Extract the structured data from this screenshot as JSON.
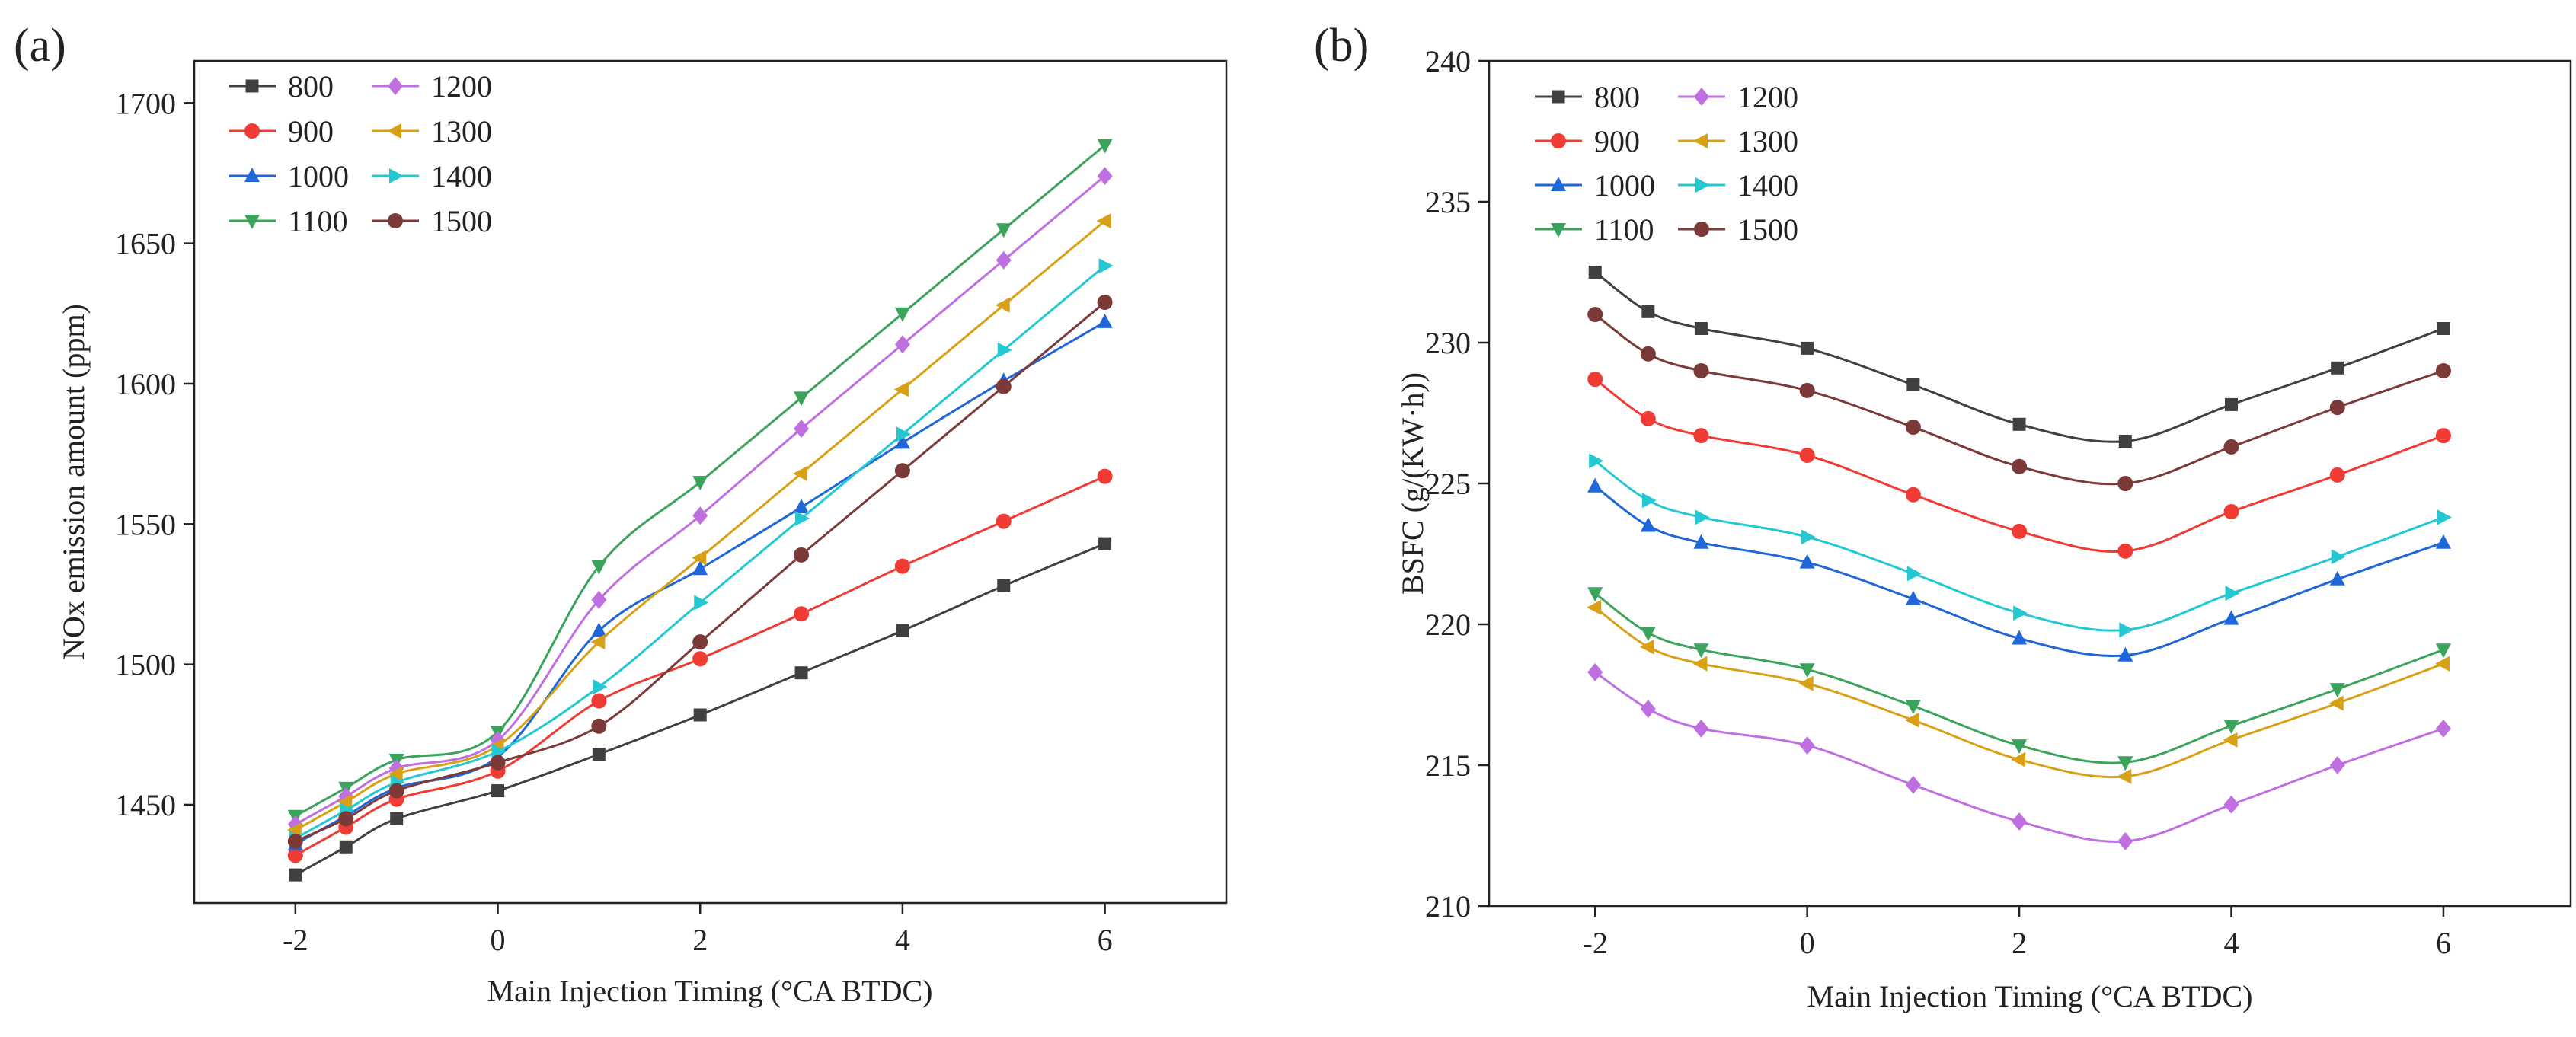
{
  "chart_data": [
    {
      "panel_label": "(a)",
      "type": "line",
      "xlabel": "Main Injection Timing (°CA BTDC)",
      "ylabel": "NOx emission amount (ppm)",
      "xlim": [
        -3,
        7.2
      ],
      "ylim": [
        1415,
        1715
      ],
      "xticks": [
        -2,
        0,
        2,
        4,
        6
      ],
      "yticks": [
        1450,
        1500,
        1550,
        1600,
        1650,
        1700
      ],
      "x": [
        -2,
        -1.5,
        -1,
        0,
        1,
        2,
        3,
        4,
        5,
        6
      ],
      "legend_position": "top-left",
      "series": [
        {
          "name": "800",
          "color": "#404040",
          "marker": "square",
          "values": [
            1425,
            1435,
            1445,
            1455,
            1468,
            1482,
            1497,
            1512,
            1528,
            1543
          ]
        },
        {
          "name": "900",
          "color": "#ef3b33",
          "marker": "circle",
          "values": [
            1432,
            1442,
            1452,
            1462,
            1487,
            1502,
            1518,
            1535,
            1551,
            1567
          ]
        },
        {
          "name": "1000",
          "color": "#1f66d9",
          "marker": "triangle-up",
          "values": [
            1436,
            1446,
            1456,
            1467,
            1512,
            1534,
            1556,
            1579,
            1601,
            1622
          ]
        },
        {
          "name": "1100",
          "color": "#3aa35c",
          "marker": "triangle-down",
          "values": [
            1446,
            1456,
            1466,
            1476,
            1535,
            1565,
            1595,
            1625,
            1655,
            1685
          ]
        },
        {
          "name": "1200",
          "color": "#bf6fe0",
          "marker": "diamond",
          "values": [
            1443,
            1453,
            1463,
            1473,
            1523,
            1553,
            1584,
            1614,
            1644,
            1674
          ]
        },
        {
          "name": "1300",
          "color": "#d8a015",
          "marker": "triangle-left",
          "values": [
            1441,
            1451,
            1461,
            1471,
            1508,
            1538,
            1568,
            1598,
            1628,
            1658
          ]
        },
        {
          "name": "1400",
          "color": "#25c8d2",
          "marker": "triangle-right",
          "values": [
            1438,
            1448,
            1458,
            1469,
            1492,
            1522,
            1552,
            1582,
            1612,
            1642
          ]
        },
        {
          "name": "1500",
          "color": "#7b3a38",
          "marker": "circle",
          "values": [
            1437,
            1445,
            1455,
            1465,
            1478,
            1508,
            1539,
            1569,
            1599,
            1629
          ]
        }
      ]
    },
    {
      "panel_label": "(b)",
      "type": "line",
      "xlabel": "Main Injection Timing (°CA BTDC)",
      "ylabel": "BSFC (g/(KW·h))",
      "xlim": [
        -3,
        7.2
      ],
      "ylim": [
        210,
        240
      ],
      "xticks": [
        -2,
        0,
        2,
        4,
        6
      ],
      "yticks": [
        210,
        215,
        220,
        225,
        230,
        235,
        240
      ],
      "x": [
        -2,
        -1.5,
        -1,
        0,
        1,
        2,
        3,
        4,
        5,
        6
      ],
      "legend_position": "top-left",
      "series": [
        {
          "name": "800",
          "color": "#404040",
          "marker": "square",
          "values": [
            232.5,
            231.1,
            230.5,
            229.8,
            228.5,
            227.1,
            226.5,
            227.8,
            229.1,
            230.5
          ]
        },
        {
          "name": "900",
          "color": "#ef3b33",
          "marker": "circle",
          "values": [
            228.7,
            227.3,
            226.7,
            226.0,
            224.6,
            223.3,
            222.6,
            224.0,
            225.3,
            226.7
          ]
        },
        {
          "name": "1000",
          "color": "#1f66d9",
          "marker": "triangle-up",
          "values": [
            224.9,
            223.5,
            222.9,
            222.2,
            220.9,
            219.5,
            218.9,
            220.2,
            221.6,
            222.9
          ]
        },
        {
          "name": "1100",
          "color": "#3aa35c",
          "marker": "triangle-down",
          "values": [
            221.1,
            219.7,
            219.1,
            218.4,
            217.1,
            215.7,
            215.1,
            216.4,
            217.7,
            219.1
          ]
        },
        {
          "name": "1200",
          "color": "#bf6fe0",
          "marker": "diamond",
          "values": [
            218.3,
            217.0,
            216.3,
            215.7,
            214.3,
            213.0,
            212.3,
            213.6,
            215.0,
            216.3
          ]
        },
        {
          "name": "1300",
          "color": "#d8a015",
          "marker": "triangle-left",
          "values": [
            220.6,
            219.2,
            218.6,
            217.9,
            216.6,
            215.2,
            214.6,
            215.9,
            217.2,
            218.6
          ]
        },
        {
          "name": "1400",
          "color": "#25c8d2",
          "marker": "triangle-right",
          "values": [
            225.8,
            224.4,
            223.8,
            223.1,
            221.8,
            220.4,
            219.8,
            221.1,
            222.4,
            223.8
          ]
        },
        {
          "name": "1500",
          "color": "#7b3a38",
          "marker": "circle",
          "values": [
            231.0,
            229.6,
            229.0,
            228.3,
            227.0,
            225.6,
            225.0,
            226.3,
            227.7,
            229.0
          ]
        }
      ]
    }
  ]
}
